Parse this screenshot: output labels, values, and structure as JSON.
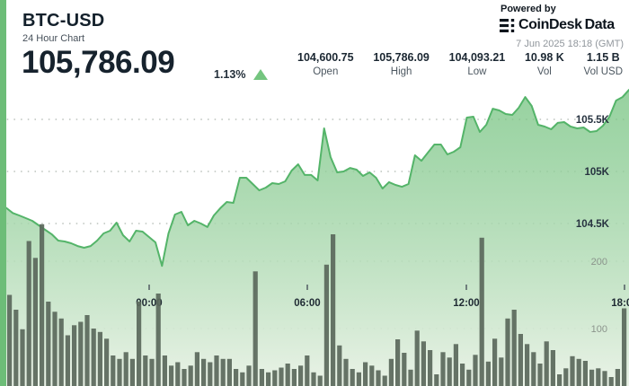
{
  "header": {
    "symbol": "BTC-USD",
    "subtitle": "24 Hour Chart",
    "price": "105,786.09",
    "change_pct": "1.13%",
    "change_direction": "up",
    "stats": [
      {
        "value": "104,600.75",
        "label": "Open"
      },
      {
        "value": "105,786.09",
        "label": "High"
      },
      {
        "value": "104,093.21",
        "label": "Low"
      },
      {
        "value": "10.98 K",
        "label": "Vol"
      },
      {
        "value": "1.15 B",
        "label": "Vol USD"
      }
    ]
  },
  "branding": {
    "powered_by": "Powered by",
    "brand_primary": "CoinDesk",
    "brand_secondary": "Data",
    "timestamp": "7 Jun 2025 18:18 (GMT)"
  },
  "colors": {
    "stripe_green": "#6dbd78",
    "line_green": "#54b469",
    "area_top": "#6ec07a",
    "area_bottom": "#e9f2e6",
    "volume_bar": "#5b695c",
    "grid": "#9aa49b",
    "price_tick_text": "#273340",
    "volume_tick_text": "#8b948c",
    "time_tick_text": "#1f2a33",
    "triangle_up": "#74c57f"
  },
  "chart_data": {
    "type": "area",
    "title": "BTC-USD 24 Hour Chart",
    "legend": "none",
    "grid": "dotted-horizontal",
    "x_axis": {
      "tick_labels": [
        "00:00",
        "06:00",
        "12:00",
        "18:00"
      ]
    },
    "price_axis": {
      "side": "right",
      "tick_labels": [
        "105.5K",
        "105K",
        "104.5K"
      ],
      "tick_values": [
        105500,
        105000,
        104500
      ]
    },
    "volume_axis": {
      "side": "right",
      "tick_labels": [
        "200",
        "100"
      ],
      "tick_values": [
        200,
        100
      ]
    },
    "open": 104600.75,
    "high": 105786.09,
    "low": 104093.21,
    "last": 105786.09,
    "volume_k": 10.98,
    "volume_usd_b": 1.15,
    "prices": [
      104650,
      104601,
      104578,
      104552,
      104526,
      104483,
      104440,
      104397,
      104336,
      104328,
      104310,
      104284,
      104267,
      104284,
      104336,
      104405,
      104431,
      104509,
      104388,
      104328,
      104431,
      104422,
      104371,
      104319,
      104093,
      104405,
      104586,
      104612,
      104483,
      104526,
      104500,
      104466,
      104578,
      104647,
      104707,
      104698,
      104940,
      104940,
      104879,
      104819,
      104845,
      104888,
      104879,
      104905,
      105009,
      105069,
      104966,
      104966,
      104914,
      105414,
      105138,
      104991,
      105000,
      105034,
      105017,
      104957,
      104991,
      104940,
      104836,
      104897,
      104871,
      104853,
      104879,
      105155,
      105103,
      105181,
      105259,
      105259,
      105164,
      105190,
      105233,
      105517,
      105526,
      105379,
      105448,
      105603,
      105586,
      105552,
      105543,
      105612,
      105715,
      105629,
      105448,
      105431,
      105405,
      105466,
      105474,
      105431,
      105414,
      105422,
      105379,
      105388,
      105440,
      105526,
      105681,
      105715,
      105784
    ],
    "volumes": [
      150,
      128,
      99,
      230,
      205,
      255,
      140,
      125,
      115,
      90,
      105,
      110,
      120,
      100,
      95,
      85,
      60,
      55,
      65,
      55,
      140,
      60,
      55,
      152,
      60,
      45,
      50,
      40,
      45,
      65,
      55,
      50,
      60,
      55,
      55,
      40,
      35,
      45,
      185,
      40,
      35,
      38,
      42,
      48,
      40,
      45,
      60,
      35,
      30,
      195,
      240,
      75,
      55,
      40,
      35,
      50,
      45,
      38,
      30,
      55,
      84,
      64,
      39,
      97,
      81,
      68,
      32,
      65,
      57,
      77,
      48,
      39,
      61,
      235,
      51,
      85,
      57,
      115,
      128,
      92,
      77,
      65,
      48,
      81,
      68,
      32,
      41,
      59,
      55,
      52,
      39,
      41,
      37,
      28,
      40,
      130
    ]
  }
}
